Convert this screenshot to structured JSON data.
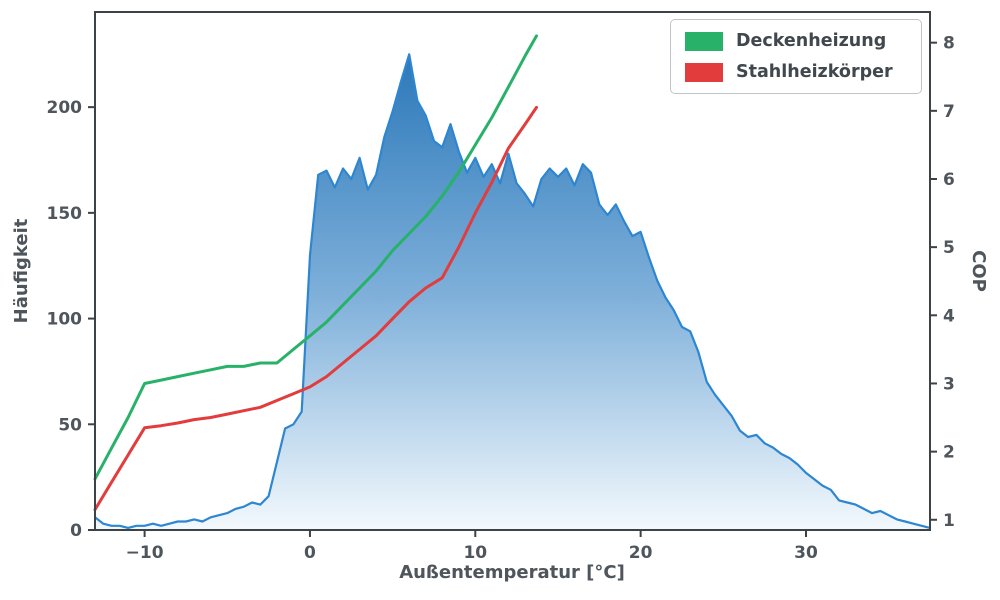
{
  "style": {
    "background": "#ffffff",
    "text_color": "#4e555b",
    "spine_color": "#3d4247"
  },
  "chart_data": {
    "type": "area+line",
    "title": "",
    "xlabel": "Außentemperatur [°C]",
    "ylabel_left": "Häufigkeit",
    "ylabel_right": "COP",
    "grid": false,
    "legend_position": "upper right",
    "x_range": [
      -13,
      37.5
    ],
    "x_ticks": [
      -10,
      0,
      10,
      20,
      30
    ],
    "x_tick_labels": [
      "−10",
      "0",
      "10",
      "20",
      "30"
    ],
    "y_left_range": [
      0,
      245
    ],
    "y_left_ticks": [
      0,
      50,
      100,
      150,
      200
    ],
    "y_left_tick_labels": [
      "0",
      "50",
      "100",
      "150",
      "200"
    ],
    "y_right_range": [
      0.85,
      8.45
    ],
    "y_right_ticks": [
      1,
      2,
      3,
      4,
      5,
      6,
      7,
      8
    ],
    "y_right_tick_labels": [
      "1",
      "2",
      "3",
      "4",
      "5",
      "6",
      "7",
      "8"
    ],
    "histogram": {
      "axis": "left",
      "line_color": "#2e86d1",
      "fill_gradient_top": "#1d6fb4",
      "fill_gradient_mid": "#7fb0da",
      "fill_gradient_bottom": "#f3f9fd",
      "x_start": -13,
      "x_step": 0.5,
      "values": [
        6,
        3,
        2,
        2,
        1,
        2,
        2,
        3,
        2,
        3,
        4,
        4,
        5,
        4,
        6,
        7,
        8,
        10,
        11,
        13,
        12,
        16,
        32,
        48,
        50,
        56,
        130,
        168,
        170,
        162,
        171,
        166,
        176,
        161,
        168,
        186,
        198,
        212,
        225,
        203,
        196,
        184,
        181,
        192,
        179,
        169,
        176,
        167,
        173,
        164,
        178,
        164,
        159,
        153,
        166,
        171,
        167,
        171,
        163,
        173,
        169,
        154,
        149,
        154,
        146,
        139,
        141,
        129,
        118,
        110,
        104,
        96,
        94,
        84,
        70,
        64,
        59,
        54,
        47,
        44,
        45,
        41,
        39,
        36,
        34,
        31,
        27,
        24,
        21,
        19,
        14,
        13,
        12,
        10,
        8,
        9,
        7,
        5,
        4,
        3,
        2,
        1
      ]
    },
    "series": [
      {
        "name": "Deckenheizung",
        "axis": "right",
        "color": "#28b169",
        "width": 3,
        "x": [
          -13,
          -12,
          -11,
          -10,
          -9,
          -8,
          -7,
          -6,
          -5,
          -4,
          -3,
          -2,
          -1,
          0,
          1,
          2,
          3,
          4,
          5,
          6,
          7,
          8,
          9,
          10,
          11,
          12,
          13,
          13.7
        ],
        "y": [
          1.6,
          2.05,
          2.5,
          3.0,
          3.05,
          3.1,
          3.15,
          3.2,
          3.25,
          3.25,
          3.3,
          3.3,
          3.5,
          3.7,
          3.9,
          4.15,
          4.4,
          4.65,
          4.95,
          5.2,
          5.45,
          5.75,
          6.1,
          6.5,
          6.9,
          7.35,
          7.8,
          8.1
        ]
      },
      {
        "name": "Stahlheizkörper",
        "axis": "right",
        "color": "#e23c3c",
        "width": 3,
        "x": [
          -13,
          -12,
          -11,
          -10,
          -9,
          -8,
          -7,
          -6,
          -5,
          -4,
          -3,
          -2,
          -1,
          0,
          1,
          2,
          3,
          4,
          5,
          6,
          7,
          8,
          9,
          10,
          11,
          12,
          13,
          13.7
        ],
        "y": [
          1.15,
          1.55,
          1.95,
          2.35,
          2.38,
          2.42,
          2.47,
          2.5,
          2.55,
          2.6,
          2.65,
          2.75,
          2.85,
          2.95,
          3.1,
          3.3,
          3.5,
          3.7,
          3.95,
          4.2,
          4.4,
          4.55,
          5.0,
          5.5,
          5.95,
          6.45,
          6.8,
          7.05
        ]
      }
    ]
  }
}
